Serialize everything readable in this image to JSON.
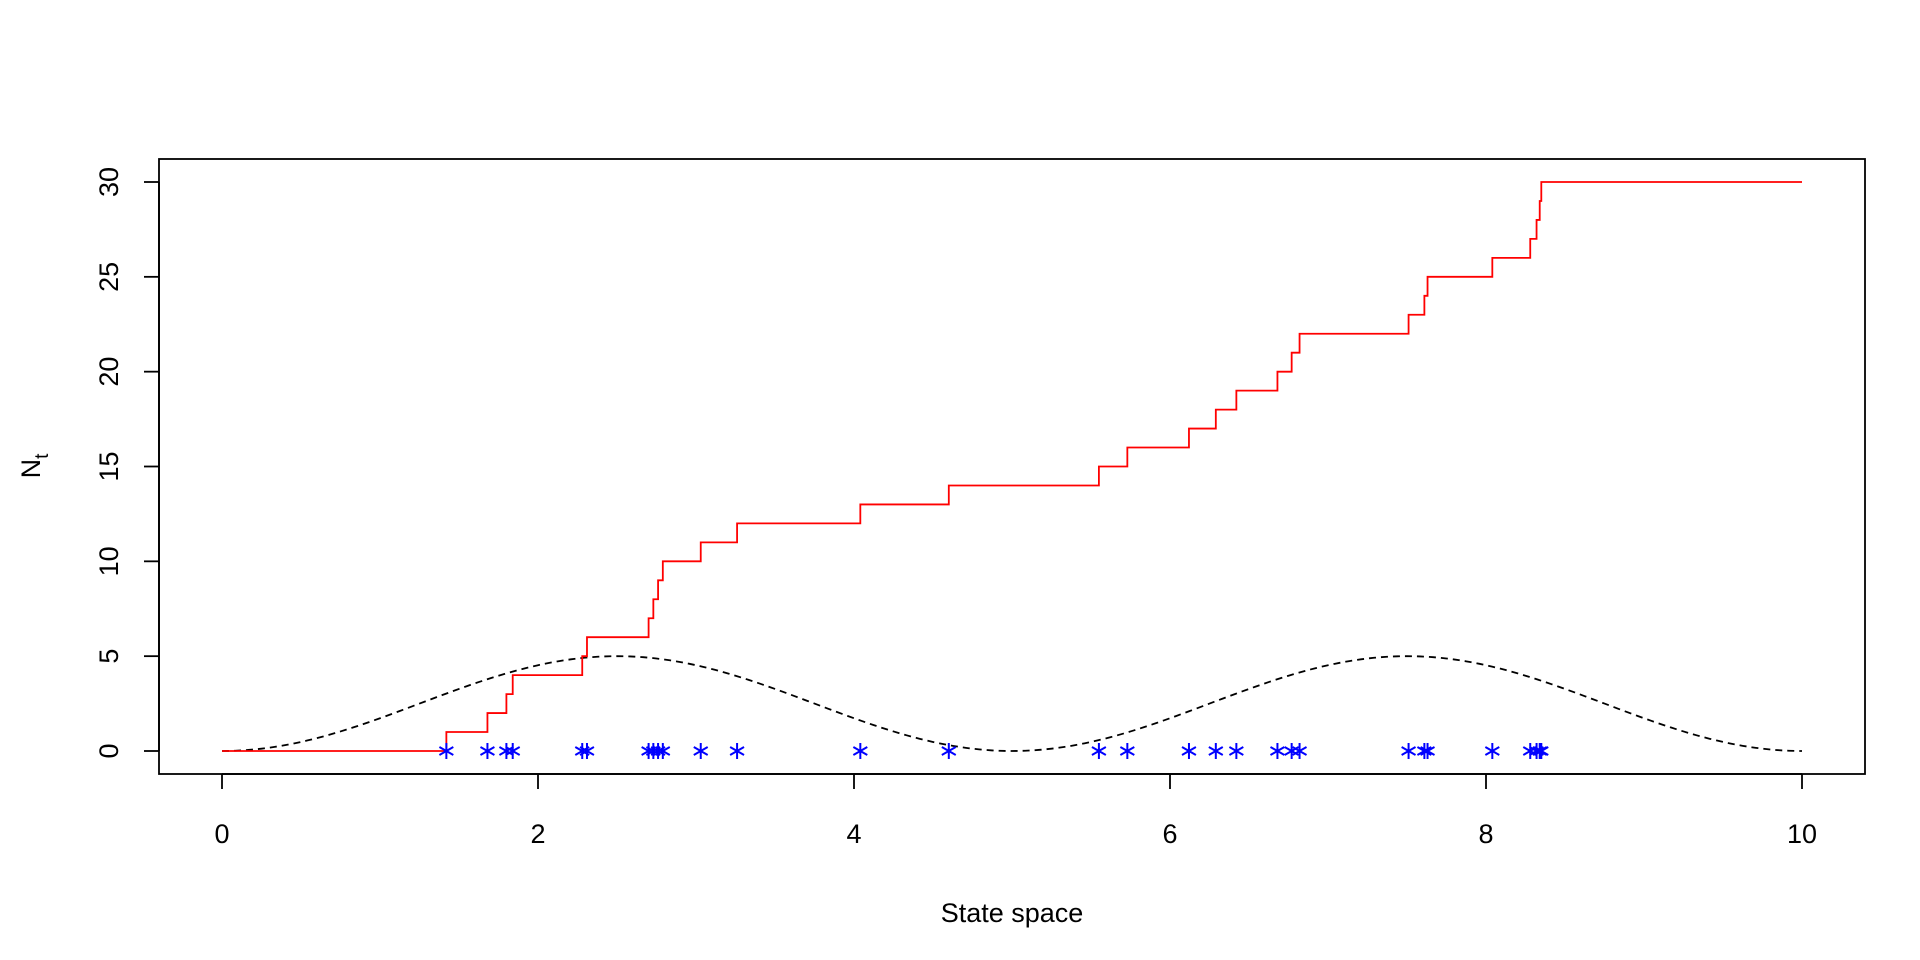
{
  "chart_data": {
    "type": "line",
    "title": "",
    "xlabel": "State space",
    "ylabel": "N",
    "ylabel_subscript": "t",
    "xlim": [
      0,
      10
    ],
    "ylim": [
      0,
      30
    ],
    "x_ticks": [
      0,
      2,
      4,
      6,
      8,
      10
    ],
    "y_ticks": [
      0,
      5,
      10,
      15,
      20,
      25,
      30
    ],
    "grid": false,
    "legend": "none",
    "colors": {
      "step": "#ff0000",
      "points": "#0000ff",
      "intensity": "#000000"
    },
    "series": [
      {
        "style": "step",
        "x_end": 10,
        "jumps": [
          1.42,
          1.68,
          1.8,
          1.84,
          2.28,
          2.31,
          2.7,
          2.73,
          2.76,
          2.79,
          3.03,
          3.26,
          4.04,
          4.6,
          5.55,
          5.73,
          6.12,
          6.29,
          6.42,
          6.68,
          6.77,
          6.82,
          7.51,
          7.61,
          7.63,
          8.04,
          8.28,
          8.32,
          8.34,
          8.35
        ]
      },
      {
        "style": "points",
        "marker": "asterisk",
        "y": 0,
        "x": [
          1.42,
          1.68,
          1.8,
          1.84,
          2.28,
          2.31,
          2.7,
          2.73,
          2.76,
          2.79,
          3.03,
          3.26,
          4.04,
          4.6,
          5.55,
          5.73,
          6.12,
          6.29,
          6.42,
          6.68,
          6.77,
          6.82,
          7.51,
          7.61,
          7.63,
          8.04,
          8.28,
          8.32,
          8.34,
          8.35
        ]
      },
      {
        "style": "dashed",
        "function": "5*sin(pi*x/5)^2",
        "x_range": [
          0,
          10
        ]
      }
    ]
  }
}
